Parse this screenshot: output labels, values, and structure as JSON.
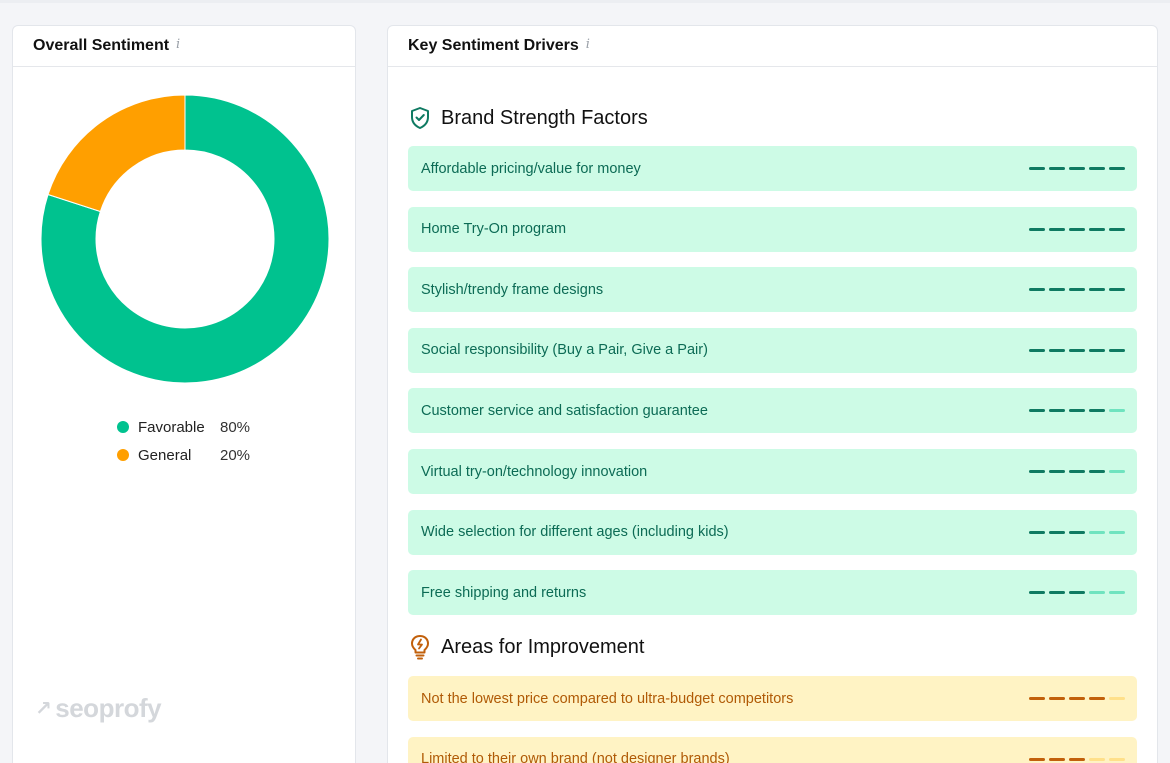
{
  "sentiment": {
    "title": "Overall Sentiment",
    "info_icon": "i",
    "legend": [
      {
        "name": "Favorable",
        "percent": "80%",
        "value": 80,
        "color": "#00c28f"
      },
      {
        "name": "General",
        "percent": "20%",
        "value": 20,
        "color": "#ff9f00"
      }
    ],
    "watermark": "seoprofy"
  },
  "drivers": {
    "title": "Key Sentiment Drivers",
    "info_icon": "i",
    "strengths": {
      "title": "Brand Strength Factors",
      "icon": "shield-check-icon",
      "color_on": "#0f7a62",
      "color_off": "#6fe3bf",
      "items": [
        {
          "label": "Affordable pricing/value for money",
          "score": 5
        },
        {
          "label": "Home Try-On program",
          "score": 5
        },
        {
          "label": "Stylish/trendy frame designs",
          "score": 5
        },
        {
          "label": "Social responsibility (Buy a Pair, Give a Pair)",
          "score": 5
        },
        {
          "label": "Customer service and satisfaction guarantee",
          "score": 4
        },
        {
          "label": "Virtual try-on/technology innovation",
          "score": 4
        },
        {
          "label": "Wide selection for different ages (including kids)",
          "score": 3
        },
        {
          "label": "Free shipping and returns",
          "score": 3
        }
      ]
    },
    "improvements": {
      "title": "Areas for Improvement",
      "icon": "lightbulb-icon",
      "color_on": "#c2600b",
      "color_off": "#ffe08a",
      "items": [
        {
          "label": "Not the lowest price compared to ultra-budget competitors",
          "score": 4
        },
        {
          "label": "Limited to their own brand (not designer brands)",
          "score": 3
        }
      ]
    }
  }
}
